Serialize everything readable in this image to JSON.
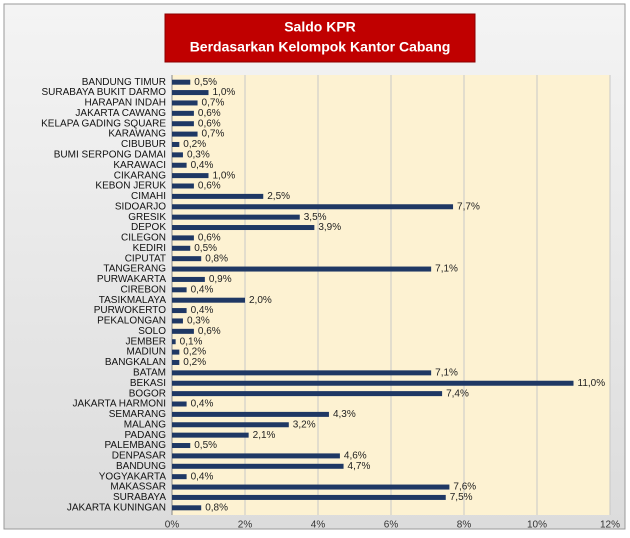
{
  "chart_data": {
    "type": "barh",
    "title": "Saldo KPR",
    "subtitle": "Berdasarkan Kelompok Kantor Cabang",
    "categories": [
      "BANDUNG TIMUR",
      "SURABAYA BUKIT DARMO",
      "HARAPAN INDAH",
      "JAKARTA CAWANG",
      "KELAPA GADING SQUARE",
      "KARAWANG",
      "CIBUBUR",
      "BUMI SERPONG DAMAI",
      "KARAWACI",
      "CIKARANG",
      "KEBON JERUK",
      "CIMAHI",
      "SIDOARJO",
      "GRESIK",
      "DEPOK",
      "CILEGON",
      "KEDIRI",
      "CIPUTAT",
      "TANGERANG",
      "PURWAKARTA",
      "CIREBON",
      "TASIKMALAYA",
      "PURWOKERTO",
      "PEKALONGAN",
      "SOLO",
      "JEMBER",
      "MADIUN",
      "BANGKALAN",
      "BATAM",
      "BEKASI",
      "BOGOR",
      "JAKARTA HARMONI",
      "SEMARANG",
      "MALANG",
      "PADANG",
      "PALEMBANG",
      "DENPASAR",
      "BANDUNG",
      "YOGYAKARTA",
      "MAKASSAR",
      "SURABAYA",
      "JAKARTA KUNINGAN"
    ],
    "values": [
      0.5,
      1.0,
      0.7,
      0.6,
      0.6,
      0.7,
      0.2,
      0.3,
      0.4,
      1.0,
      0.6,
      2.5,
      7.7,
      3.5,
      3.9,
      0.6,
      0.5,
      0.8,
      7.1,
      0.9,
      0.4,
      2.0,
      0.4,
      0.3,
      0.6,
      0.1,
      0.2,
      0.2,
      7.1,
      11.0,
      7.4,
      0.4,
      4.3,
      3.2,
      2.1,
      0.5,
      4.6,
      4.7,
      0.4,
      7.6,
      7.5,
      0.8
    ],
    "value_labels": [
      "0,5%",
      "1,0%",
      "0,7%",
      "0,6%",
      "0,6%",
      "0,7%",
      "0,2%",
      "0,3%",
      "0,4%",
      "1,0%",
      "0,6%",
      "2,5%",
      "7,7%",
      "3,5%",
      "3,9%",
      "0,6%",
      "0,5%",
      "0,8%",
      "7,1%",
      "0,9%",
      "0,4%",
      "2,0%",
      "0,4%",
      "0,3%",
      "0,6%",
      "0,1%",
      "0,2%",
      "0,2%",
      "7,1%",
      "11,0%",
      "7,4%",
      "0,4%",
      "4,3%",
      "3,2%",
      "2,1%",
      "0,5%",
      "4,6%",
      "4,7%",
      "0,4%",
      "7,6%",
      "7,5%",
      "0,8%"
    ],
    "color": "#1f3864",
    "xlim": [
      0,
      12
    ],
    "xticks": [
      {
        "value": 0,
        "label": "0%"
      },
      {
        "value": 2,
        "label": "2%"
      },
      {
        "value": 4,
        "label": "4%"
      },
      {
        "value": 6,
        "label": "6%"
      },
      {
        "value": 8,
        "label": "8%"
      },
      {
        "value": 10,
        "label": "10%"
      },
      {
        "value": 12,
        "label": "12%"
      }
    ],
    "grid": true
  }
}
